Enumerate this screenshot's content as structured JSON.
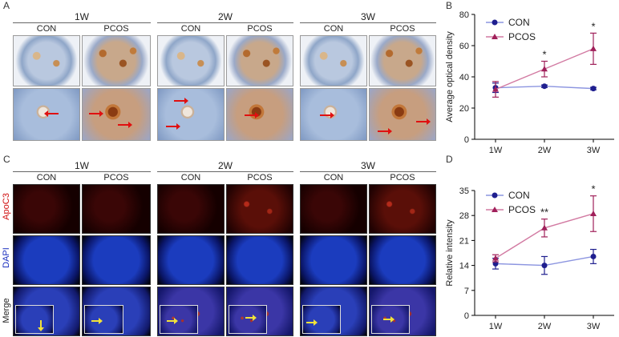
{
  "panel_labels": {
    "a": "A",
    "b": "B",
    "c": "C",
    "d": "D"
  },
  "weeks": [
    "1W",
    "2W",
    "3W"
  ],
  "groups": [
    "CON",
    "PCOS"
  ],
  "row_labels": {
    "apoc3": "ApoC3",
    "dapi": "DAPI",
    "merge": "Merge"
  },
  "colors": {
    "con": "#1f1f8f",
    "pcos": "#a0205a",
    "apoc3_label": "#d01010",
    "dapi_label": "#1a2fbf"
  },
  "chart_data": [
    {
      "type": "line",
      "panel": "B",
      "x": [
        "1W",
        "2W",
        "3W"
      ],
      "ylabel": "Average optical density",
      "ylim": [
        0,
        80
      ],
      "yticks": [
        0,
        20,
        40,
        60,
        80
      ],
      "legend_position": "top-left",
      "series": [
        {
          "name": "CON",
          "values": [
            33,
            34,
            32.5
          ],
          "error": [
            3,
            0.8,
            0.8
          ],
          "marker": "circle"
        },
        {
          "name": "PCOS",
          "values": [
            32,
            45,
            58
          ],
          "error": [
            5,
            5,
            10
          ],
          "marker": "triangle"
        }
      ],
      "annotations": [
        {
          "x": "2W",
          "text": "*"
        },
        {
          "x": "3W",
          "text": "*"
        }
      ]
    },
    {
      "type": "line",
      "panel": "D",
      "x": [
        "1W",
        "2W",
        "3W"
      ],
      "ylabel": "Relative intensity",
      "ylim": [
        0,
        35
      ],
      "yticks": [
        0,
        7,
        14,
        21,
        28,
        35
      ],
      "legend_position": "top-left",
      "series": [
        {
          "name": "CON",
          "values": [
            14.5,
            14,
            16.5
          ],
          "error": [
            1.5,
            2.5,
            2
          ],
          "marker": "circle"
        },
        {
          "name": "PCOS",
          "values": [
            16,
            24.5,
            28.5
          ],
          "error": [
            1,
            2.5,
            5
          ],
          "marker": "triangle"
        }
      ],
      "annotations": [
        {
          "x": "2W",
          "text": "**"
        },
        {
          "x": "3W",
          "text": "*"
        }
      ]
    }
  ]
}
